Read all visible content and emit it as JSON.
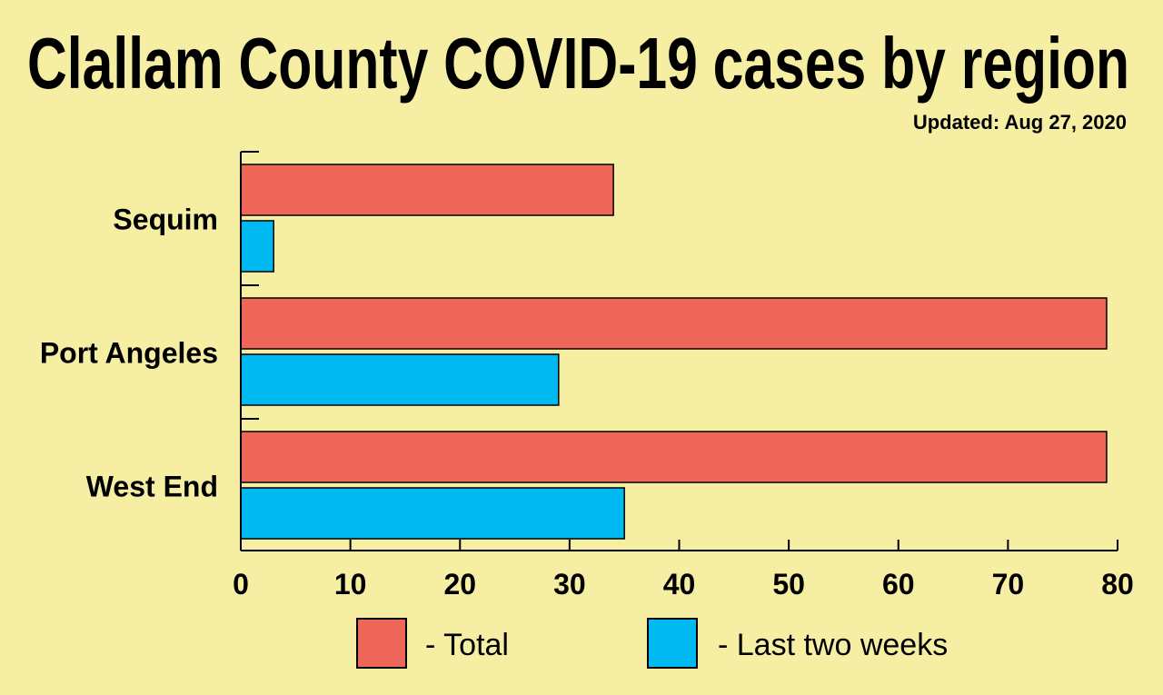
{
  "chart_data": {
    "type": "bar",
    "orientation": "horizontal",
    "title": "Clallam County COVID-19 cases by region",
    "subtitle": "Updated: Aug 27, 2020",
    "categories": [
      "Sequim",
      "Port Angeles",
      "West End"
    ],
    "series": [
      {
        "name": "- Total",
        "color": "#ee6658",
        "values": [
          34,
          79,
          79
        ]
      },
      {
        "name": "- Last two weeks",
        "color": "#00b9f0",
        "values": [
          3,
          29,
          35
        ]
      }
    ],
    "xlim": [
      0,
      80
    ],
    "xticks": [
      0,
      10,
      20,
      30,
      40,
      50,
      60,
      70,
      80
    ],
    "grid": false,
    "legend": "bottom",
    "background": "#f5eea3"
  }
}
